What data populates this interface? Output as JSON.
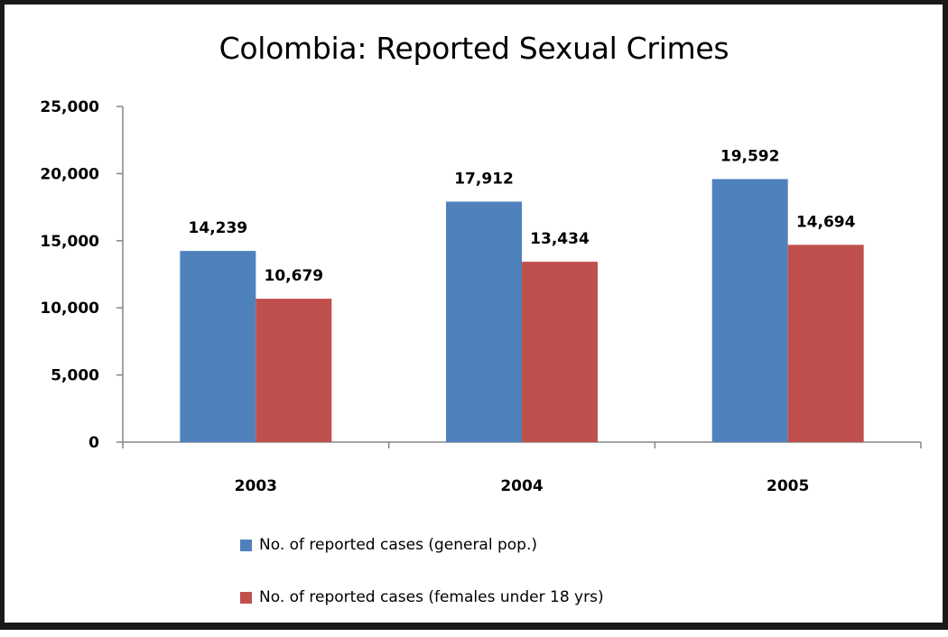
{
  "chart_data": {
    "type": "bar",
    "title": "Colombia: Reported Sexual Crimes",
    "categories": [
      "2003",
      "2004",
      "2005"
    ],
    "series": [
      {
        "name": "No. of reported cases (general pop.)",
        "values": [
          14239,
          17912,
          19592
        ],
        "labels": [
          "14,239",
          "17,912",
          "19,592"
        ],
        "color": "#4f81bd"
      },
      {
        "name": "No. of reported cases (females under 18 yrs)",
        "values": [
          10679,
          13434,
          14694
        ],
        "labels": [
          "10,679",
          "13,434",
          "14,694"
        ],
        "color": "#c0504d"
      }
    ],
    "yticks": [
      "0",
      "5,000",
      "10,000",
      "15,000",
      "20,000",
      "25,000"
    ],
    "ylim": [
      0,
      25000
    ],
    "grid": false,
    "legend_position": "bottom"
  }
}
